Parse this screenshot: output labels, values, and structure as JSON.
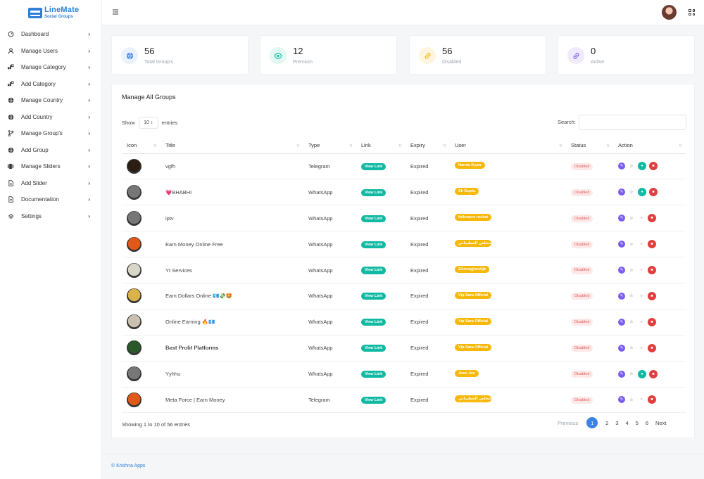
{
  "brand": {
    "name": "LineMate",
    "sub": "Social Groups"
  },
  "sidebar": {
    "items": [
      {
        "label": "Dashboard",
        "icon": "dashboard-icon"
      },
      {
        "label": "Manage Users",
        "icon": "user-icon"
      },
      {
        "label": "Manage Category",
        "icon": "category-icon"
      },
      {
        "label": "Add Category",
        "icon": "category-icon"
      },
      {
        "label": "Manage Country",
        "icon": "globe-icon"
      },
      {
        "label": "Add Country",
        "icon": "globe-icon"
      },
      {
        "label": "Manage Group's",
        "icon": "branch-icon"
      },
      {
        "label": "Add Group",
        "icon": "globe-icon"
      },
      {
        "label": "Manage Sliders",
        "icon": "slider-icon"
      },
      {
        "label": "Add Slider",
        "icon": "file-icon"
      },
      {
        "label": "Documentation",
        "icon": "file-icon"
      },
      {
        "label": "Settings",
        "icon": "gear-icon"
      }
    ]
  },
  "stats": [
    {
      "value": "56",
      "label": "Total Group's",
      "icon": "globe-icon",
      "color": "#3b82e6",
      "bg": "#eaf2fd"
    },
    {
      "value": "12",
      "label": "Premium",
      "icon": "eye-icon",
      "color": "#10b9a2",
      "bg": "#e3f7f3"
    },
    {
      "value": "56",
      "label": "Disabled",
      "icon": "link-icon",
      "color": "#f5b80b",
      "bg": "#fef6e1"
    },
    {
      "value": "0",
      "label": "Active",
      "icon": "link-icon",
      "color": "#7c5cf0",
      "bg": "#efebfd"
    }
  ],
  "panel": {
    "title": "Manage All Groups",
    "show_label": "Show",
    "entries_value": "10 ↕",
    "entries_label": "entries",
    "search_label": "Search:",
    "search_value": ""
  },
  "columns": [
    "Icon",
    "Title",
    "Type",
    "Link",
    "Expiry",
    "User",
    "Status",
    "Action"
  ],
  "rows": [
    {
      "title": "vgfh",
      "type": "Telegram",
      "link": "View Link",
      "expiry": "Expired",
      "user": "Nanda Kyaw",
      "status": "Disabled",
      "icon_color": "#2b1d12",
      "featured": true
    },
    {
      "title": "💗BHABHI",
      "type": "WhatsApp",
      "link": "View Link",
      "expiry": "Expired",
      "user": "Sk Gupta",
      "status": "Disabled",
      "icon_color": "#777777",
      "featured": true
    },
    {
      "title": "iptv",
      "type": "WhatsApp",
      "link": "View Link",
      "expiry": "Expired",
      "user": "followers rocket",
      "status": "Disabled",
      "icon_color": "#777777",
      "featured": false
    },
    {
      "title": "Earn Money Online Free",
      "type": "WhatsApp",
      "link": "View Link",
      "expiry": "Expired",
      "user": "مخلص الخطيباتي",
      "status": "Disabled",
      "icon_color": "#e0591a",
      "featured": false
    },
    {
      "title": "Yt Services",
      "type": "WhatsApp",
      "link": "View Link",
      "expiry": "Expired",
      "user": "Ghxvsgjnsshjk",
      "status": "Disabled",
      "icon_color": "#d9d6c8",
      "featured": false
    },
    {
      "title": "Earn Dollars Online 💶💸🤩",
      "type": "WhatsApp",
      "link": "View Link",
      "expiry": "Expired",
      "user": "Vip Sara Official",
      "status": "Disabled",
      "icon_color": "#d9b24a",
      "featured": false
    },
    {
      "title": "Online Earning 🔥💶",
      "type": "WhatsApp",
      "link": "View Link",
      "expiry": "Expired",
      "user": "Vip Sara Official",
      "status": "Disabled",
      "icon_color": "#c8c1b0",
      "featured": false
    },
    {
      "title": "𝐁𝐞𝐬𝐭 𝐏𝐫𝐨𝐟𝐢𝐭 𝐏𝐥𝐚𝐭𝐟𝐨𝐫𝐦𝐬",
      "type": "WhatsApp",
      "link": "View Link",
      "expiry": "Expired",
      "user": "Vip Sara Official",
      "status": "Disabled",
      "icon_color": "#2a5a2a",
      "featured": false
    },
    {
      "title": "Yyhhu",
      "type": "WhatsApp",
      "link": "View Link",
      "expiry": "Expired",
      "user": "Jose Joe",
      "status": "Disabled",
      "icon_color": "#777777",
      "featured": true
    },
    {
      "title": "Meta Force | Earn Money",
      "type": "Telegram",
      "link": "View Link",
      "expiry": "Expired",
      "user": "مخلص الخطيباتي",
      "status": "Disabled",
      "icon_color": "#e0591a",
      "featured": false
    }
  ],
  "footer_info": "Showing 1 to 10 of 56 entries",
  "pagination": {
    "prev": "Previous",
    "pages": [
      "1",
      "2",
      "3",
      "4",
      "5",
      "6"
    ],
    "next": "Next"
  },
  "copyright": "© Krishna Apps",
  "colors": {
    "accent": "#3b82e6",
    "green": "#10b9a2",
    "yellow": "#f5b80b",
    "red": "#e23d3d",
    "purple": "#7c5cf0"
  }
}
